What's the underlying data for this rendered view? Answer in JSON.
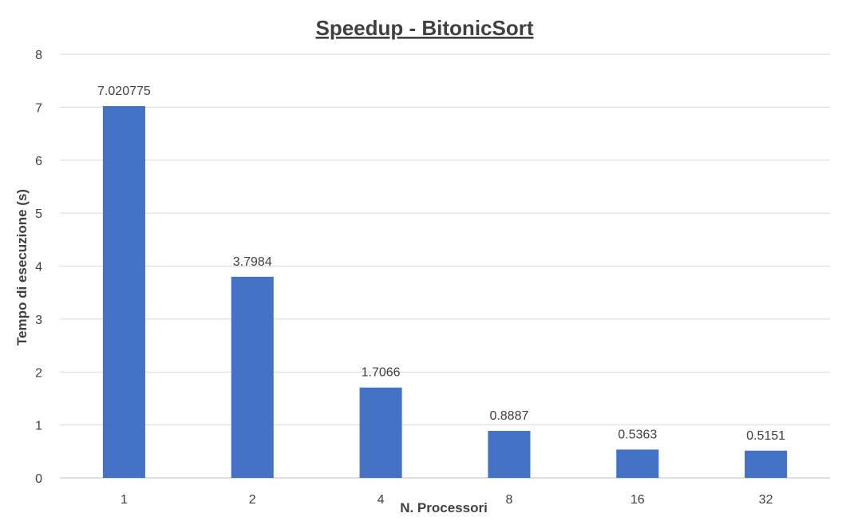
{
  "chart_data": {
    "type": "bar",
    "title": "Speedup - BitonicSort",
    "xlabel": "N. Processori",
    "ylabel": "Tempo di esecuzione (s)",
    "categories": [
      "1",
      "2",
      "4",
      "8",
      "16",
      "32"
    ],
    "values": [
      7.020775,
      3.7984,
      1.7066,
      0.8887,
      0.5363,
      0.5151
    ],
    "data_labels": [
      "7.020775",
      "3.7984",
      "1.7066",
      "0.8887",
      "0.5363",
      "0.5151"
    ],
    "ylim": [
      0,
      8
    ],
    "yticks": [
      "0",
      "1",
      "2",
      "3",
      "4",
      "5",
      "6",
      "7",
      "8"
    ],
    "grid": true,
    "legend": "none",
    "bar_color": "#4472c4"
  }
}
